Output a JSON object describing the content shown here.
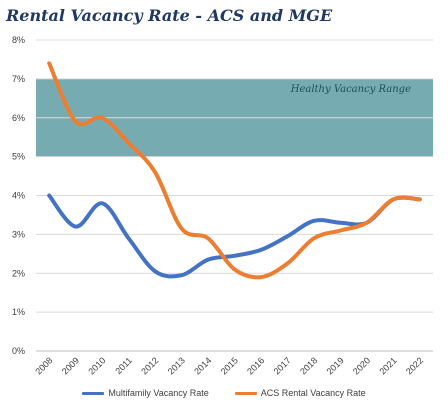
{
  "chart_data": {
    "type": "line",
    "title": "Rental Vacancy Rate - ACS and MGE",
    "xlabel": "",
    "ylabel": "",
    "categories": [
      "2008",
      "2009",
      "2010",
      "2011",
      "2012",
      "2013",
      "2014",
      "2015",
      "2016",
      "2017",
      "2018",
      "2019",
      "2020",
      "2021",
      "2022"
    ],
    "ylim": [
      0,
      8
    ],
    "yticks": [
      0,
      1,
      2,
      3,
      4,
      5,
      6,
      7,
      8
    ],
    "ytick_suffix": "%",
    "grid": true,
    "legend": "bottom",
    "band": {
      "from": 5,
      "to": 7,
      "label": "Healthy Vacancy Range",
      "color": "#5e9ea3"
    },
    "series": [
      {
        "name": "Multifamily Vacancy Rate",
        "color": "#4472c4",
        "values": [
          4.0,
          3.2,
          3.8,
          2.9,
          2.05,
          1.95,
          2.35,
          2.45,
          2.6,
          2.95,
          3.35,
          3.3,
          3.3,
          3.9,
          3.9
        ]
      },
      {
        "name": "ACS Rental Vacancy Rate",
        "color": "#ed7d31",
        "values": [
          7.4,
          5.9,
          6.0,
          5.35,
          4.6,
          3.15,
          2.9,
          2.1,
          1.9,
          2.25,
          2.9,
          3.1,
          3.3,
          3.9,
          3.9
        ]
      }
    ]
  }
}
